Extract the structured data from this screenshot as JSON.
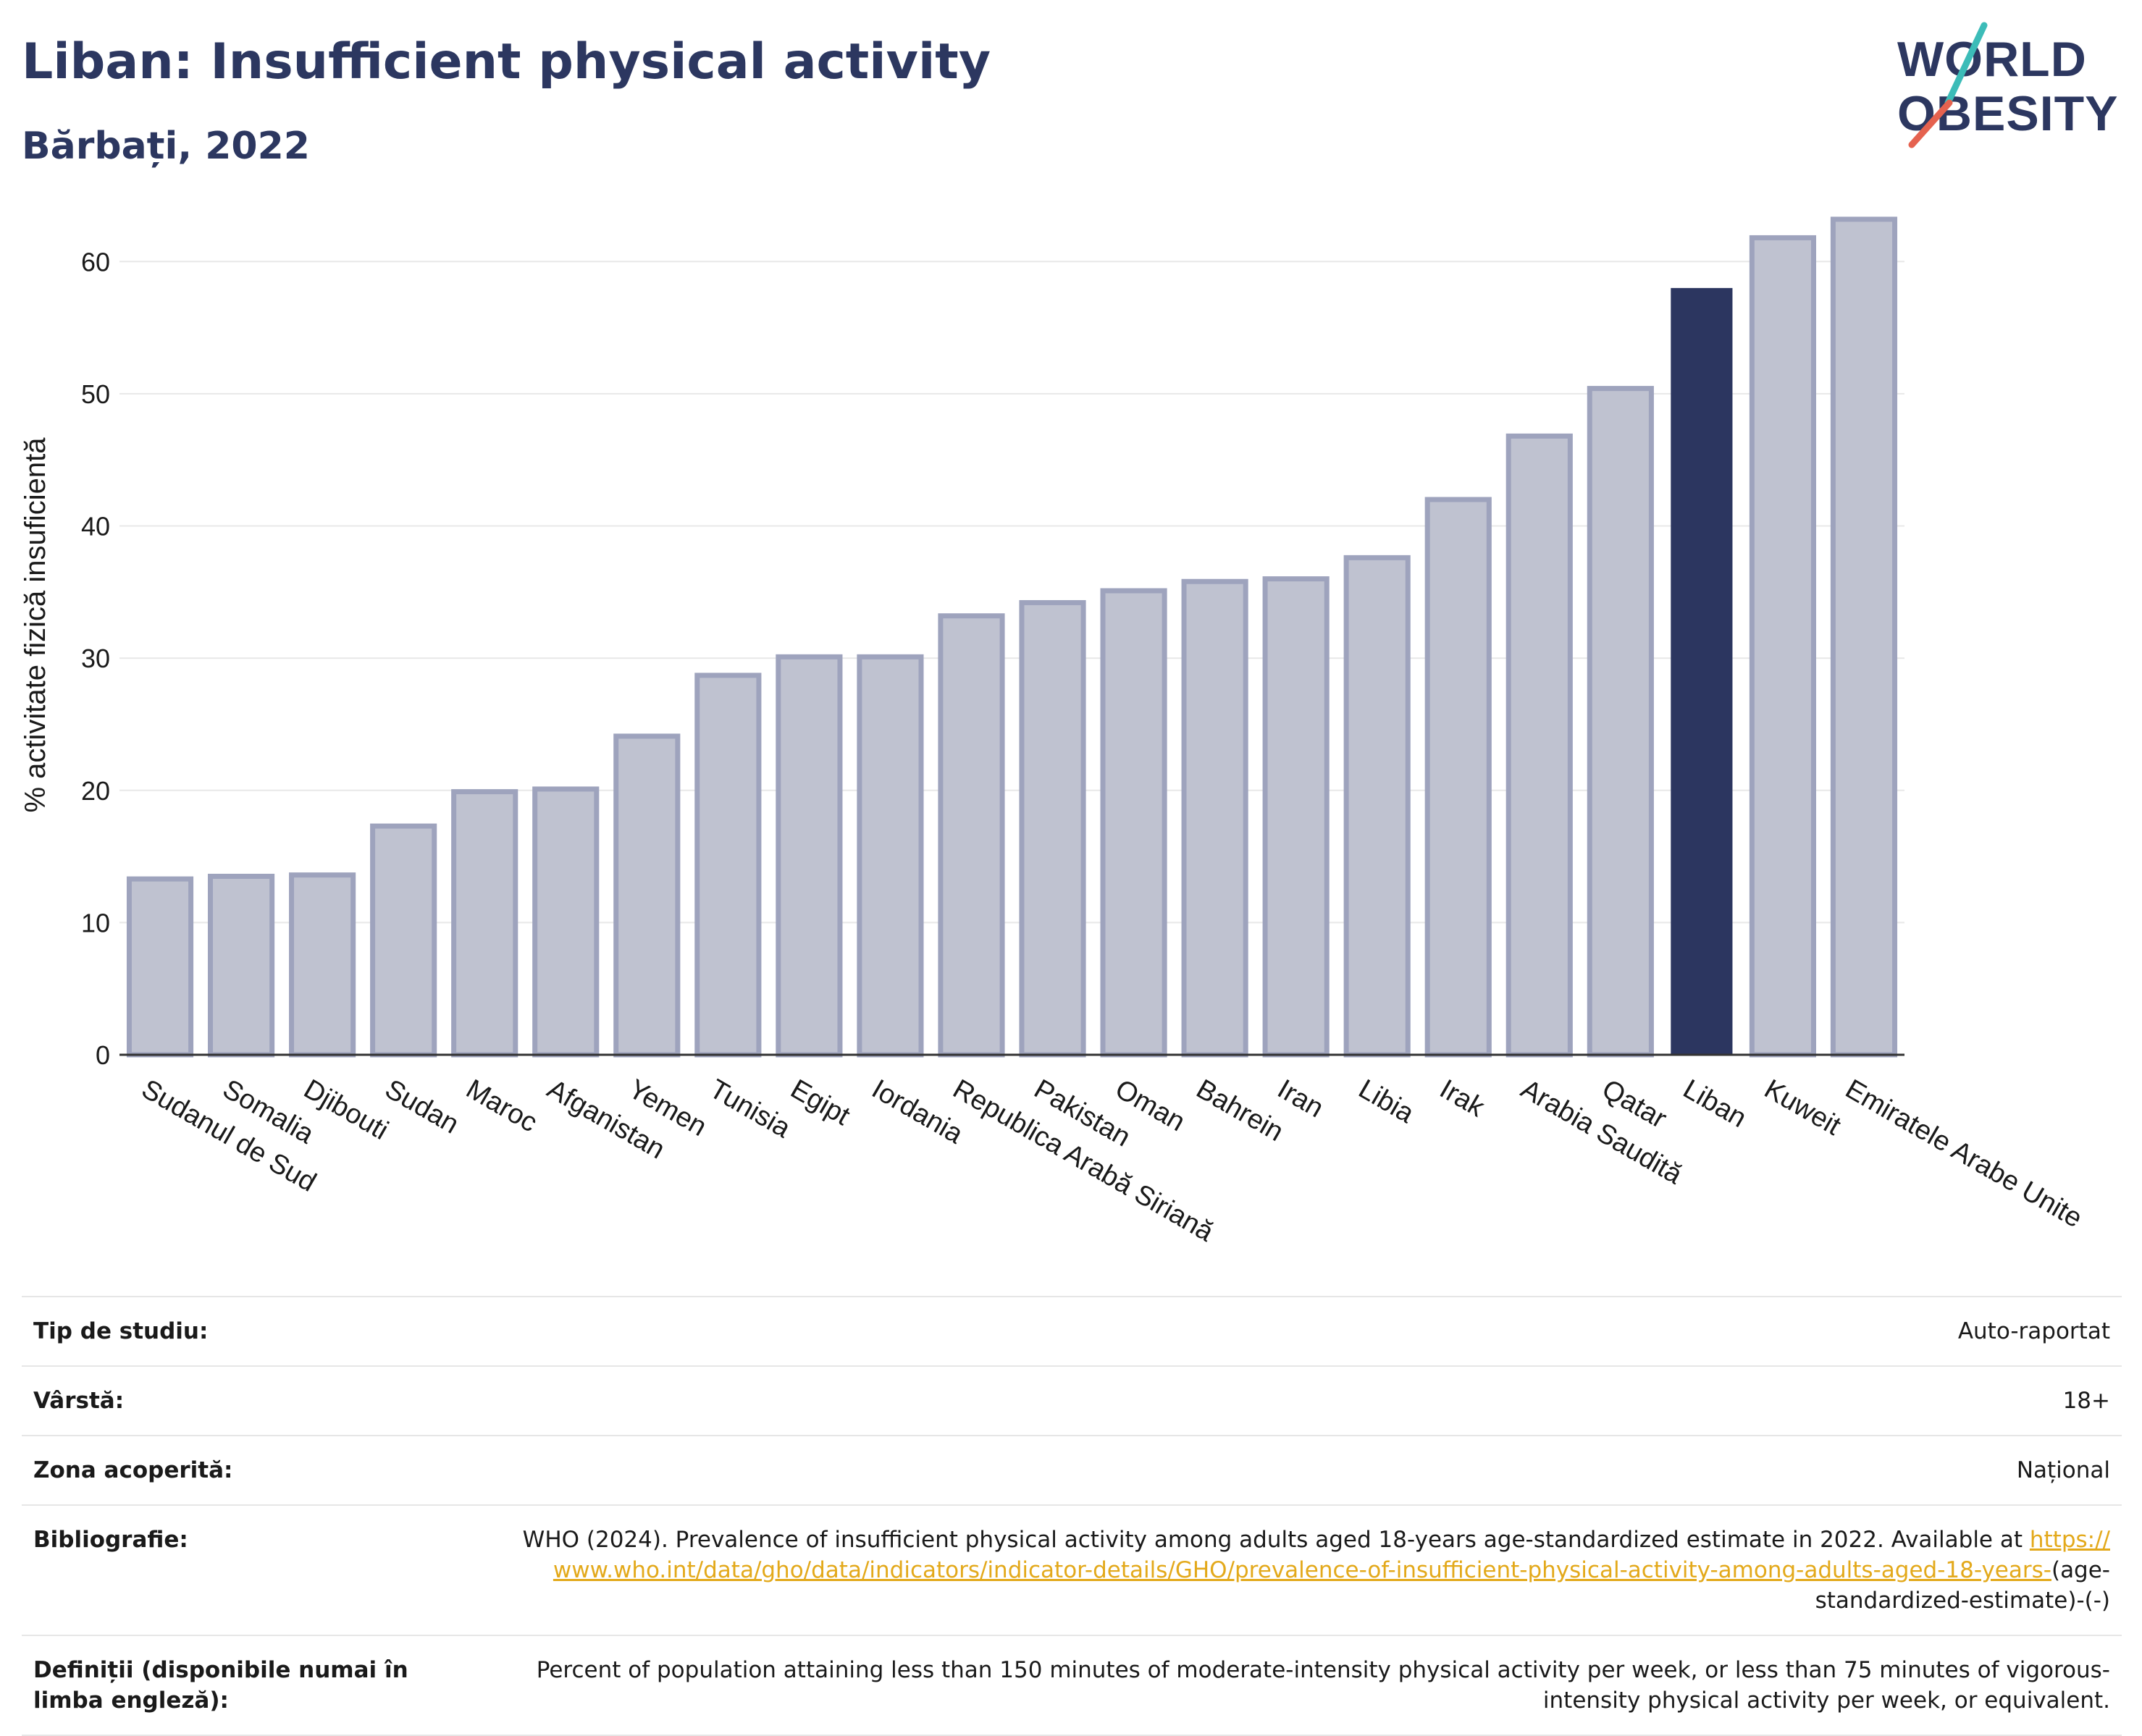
{
  "header": {
    "title": "Liban: Insufficient physical activity",
    "subtitle": "Bărbați, 2022"
  },
  "logo": {
    "line1": "WORLD",
    "line2": "OBESITY"
  },
  "colors": {
    "highlight": "#2c3660",
    "bar_fill": "#bfc2d0",
    "bar_stroke": "#9ea3bd",
    "grid": "#e8e8e8",
    "title": "#2c3760",
    "link": "#e3a91b"
  },
  "chart_data": {
    "type": "bar",
    "title": "Liban: Insufficient physical activity",
    "subtitle": "Bărbați, 2022",
    "xlabel": "",
    "ylabel": "% activitate fizică insuficientă",
    "ylim": [
      0,
      65
    ],
    "yticks": [
      0,
      10,
      20,
      30,
      40,
      50,
      60
    ],
    "grid": true,
    "highlight": "Liban",
    "categories": [
      "Sudanul de Sud",
      "Somalia",
      "Djibouti",
      "Sudan",
      "Maroc",
      "Afganistan",
      "Yemen",
      "Tunisia",
      "Egipt",
      "Iordania",
      "Republica Arabă Siriană",
      "Pakistan",
      "Oman",
      "Bahrein",
      "Iran",
      "Libia",
      "Irak",
      "Arabia Saudită",
      "Qatar",
      "Liban",
      "Kuweit",
      "Emiratele Arabe Unite"
    ],
    "values": [
      13.3,
      13.5,
      13.6,
      17.3,
      19.9,
      20.1,
      24.1,
      28.7,
      30.1,
      30.1,
      33.2,
      34.2,
      35.1,
      35.8,
      36.0,
      37.6,
      42.0,
      46.8,
      50.4,
      58.0,
      61.8,
      63.2
    ]
  },
  "info": [
    {
      "label": "Tip de studiu:",
      "value": "Auto-raportat"
    },
    {
      "label": "Vârstă:",
      "value": "18+"
    },
    {
      "label": "Zona acoperită:",
      "value": "Național"
    }
  ],
  "bibliography": {
    "label": "Bibliografie:",
    "text": "WHO (2024). Prevalence of insufficient physical activity among adults aged 18-years age-standardized estimate in 2022. Available at",
    "link": "https://www.who.int/data/gho/data/indicators/indicator-details/GHO/prevalence-of-insufficient-physical-activity-among-adults-aged-18-years-",
    "suffix": "(age-standardized-estimate)-(-)"
  },
  "definitions": {
    "label": "Definiții (disponibile numai în limba engleză):",
    "text": "Percent of population attaining less than 150 minutes of moderate-intensity physical activity per week, or less than 75 minutes of vigorous-intensity physical activity per week, or equivalent."
  }
}
